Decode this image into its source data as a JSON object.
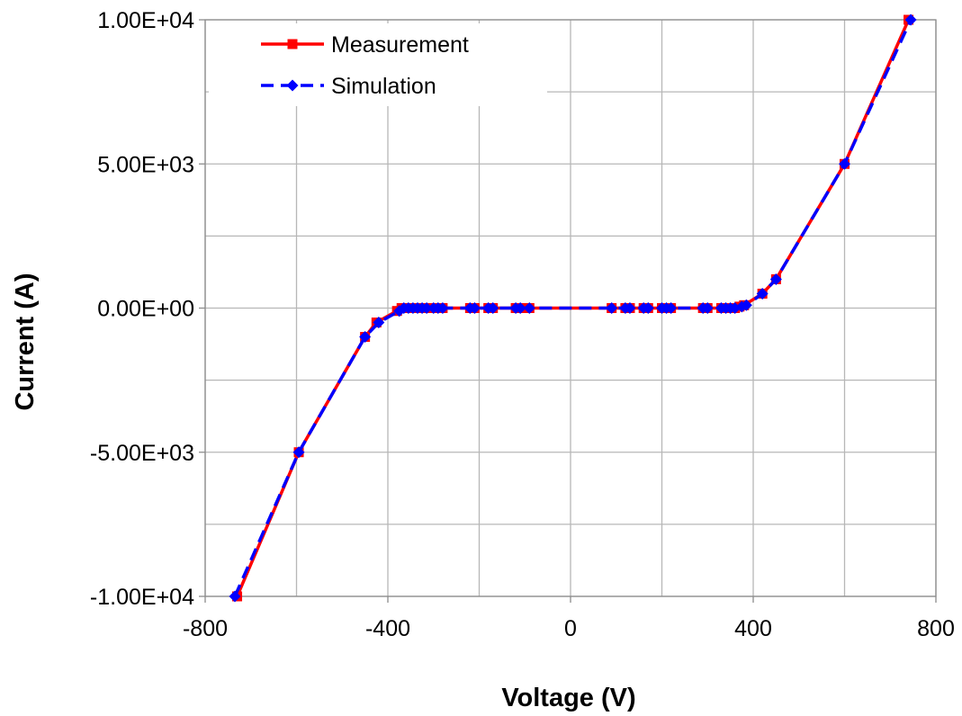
{
  "chart_data": {
    "type": "line",
    "title": "",
    "xlabel": "Voltage (V)",
    "ylabel": "Current (A)",
    "xlim": [
      -800,
      800
    ],
    "ylim": [
      -10000,
      10000
    ],
    "x_ticks": [
      -800,
      -400,
      0,
      400,
      800
    ],
    "x_tick_labels": [
      "-800",
      "-400",
      "0",
      "400",
      "800"
    ],
    "y_ticks": [
      -10000,
      -5000,
      0,
      5000,
      10000
    ],
    "y_tick_labels": [
      "-1.00E+04",
      "-5.00E+03",
      "0.00E+00",
      "5.00E+03",
      "1.00E+04"
    ],
    "grid": true,
    "legend_position": "top-left",
    "series": [
      {
        "name": "Measurement",
        "color": "#ff0000",
        "line_style": "solid",
        "marker": "square",
        "x": [
          -730,
          -595,
          -450,
          -425,
          -380,
          -370,
          -360,
          -350,
          -340,
          -330,
          -320,
          -300,
          -290,
          -280,
          -220,
          -210,
          -180,
          -170,
          -120,
          -110,
          -90,
          90,
          120,
          130,
          160,
          170,
          200,
          210,
          220,
          290,
          300,
          330,
          340,
          350,
          360,
          370,
          380,
          420,
          450,
          600,
          740
        ],
        "y": [
          -10000,
          -5000,
          -1000,
          -500,
          -100,
          0,
          0,
          0,
          0,
          0,
          0,
          0,
          0,
          0,
          0,
          0,
          0,
          0,
          0,
          0,
          0,
          0,
          0,
          0,
          0,
          0,
          0,
          0,
          0,
          0,
          0,
          0,
          0,
          0,
          0,
          50,
          100,
          500,
          1000,
          5000,
          10000
        ]
      },
      {
        "name": "Simulation",
        "color": "#0000ff",
        "line_style": "dashed",
        "marker": "diamond",
        "x": [
          -735,
          -595,
          -450,
          -420,
          -375,
          -365,
          -355,
          -345,
          -335,
          -325,
          -315,
          -300,
          -290,
          -280,
          -220,
          -210,
          -180,
          -170,
          -120,
          -110,
          -90,
          90,
          120,
          130,
          160,
          170,
          200,
          210,
          220,
          290,
          300,
          330,
          340,
          350,
          360,
          375,
          385,
          420,
          450,
          600,
          745
        ],
        "y": [
          -10000,
          -5000,
          -1000,
          -500,
          -100,
          0,
          0,
          0,
          0,
          0,
          0,
          0,
          0,
          0,
          0,
          0,
          0,
          0,
          0,
          0,
          0,
          0,
          0,
          0,
          0,
          0,
          0,
          0,
          0,
          0,
          0,
          0,
          0,
          0,
          0,
          50,
          100,
          500,
          1000,
          5000,
          10000
        ]
      }
    ]
  }
}
